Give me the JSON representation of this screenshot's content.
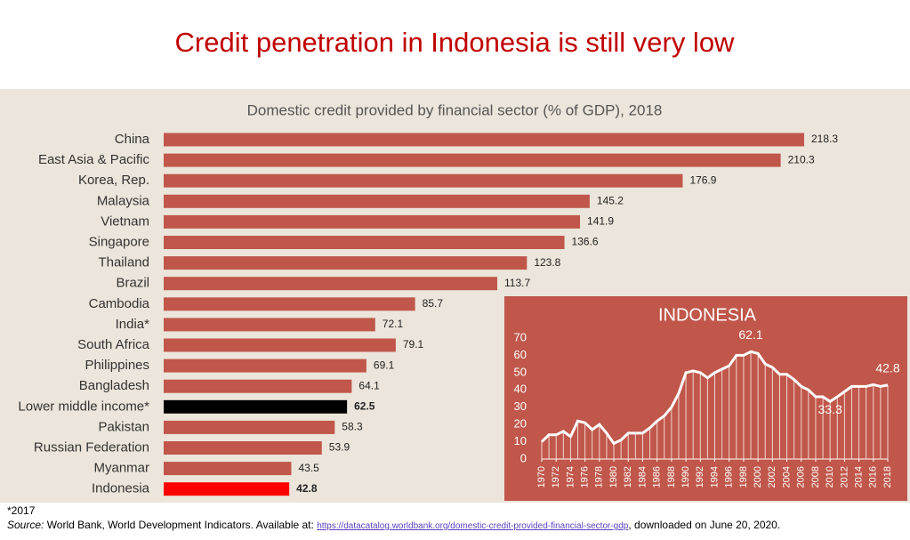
{
  "header": {
    "title": "Credit penetration in Indonesia is still very low"
  },
  "chart_data": [
    {
      "type": "hbar",
      "title": "Domestic credit provided by financial sector (% of GDP), 2018",
      "categories": [
        "China",
        "East Asia & Pacific",
        "Korea, Rep.",
        "Malaysia",
        "Vietnam",
        "Singapore",
        "Thailand",
        "Brazil",
        "Cambodia",
        "India*",
        "South Africa",
        "Philippines",
        "Bangladesh",
        "Lower middle income*",
        "Pakistan",
        "Russian Federation",
        "Myanmar",
        "Indonesia"
      ],
      "values": [
        218.3,
        210.3,
        176.9,
        145.2,
        141.9,
        136.6,
        123.8,
        113.7,
        85.7,
        72.1,
        79.1,
        69.1,
        64.1,
        62.5,
        58.3,
        53.9,
        43.5,
        42.8
      ],
      "color": "#c0574a",
      "colors": [
        "#c0574a",
        "#c0574a",
        "#c0574a",
        "#c0574a",
        "#c0574a",
        "#c0574a",
        "#c0574a",
        "#c0574a",
        "#c0574a",
        "#c0574a",
        "#c0574a",
        "#c0574a",
        "#c0574a",
        "#000000",
        "#c0574a",
        "#c0574a",
        "#c0574a",
        "#ff0000"
      ]
    },
    {
      "type": "line",
      "title": "INDONESIA",
      "color": "#ffffff",
      "x": [
        1970,
        1971,
        1972,
        1973,
        1974,
        1975,
        1976,
        1977,
        1978,
        1979,
        1980,
        1981,
        1982,
        1983,
        1984,
        1985,
        1986,
        1987,
        1988,
        1989,
        1990,
        1991,
        1992,
        1993,
        1994,
        1995,
        1996,
        1997,
        1998,
        1999,
        2000,
        2001,
        2002,
        2003,
        2004,
        2005,
        2006,
        2007,
        2008,
        2009,
        2010,
        2011,
        2012,
        2013,
        2014,
        2015,
        2016,
        2017,
        2018
      ],
      "values": [
        10,
        14,
        14,
        16,
        13,
        22,
        21,
        17,
        20,
        15,
        9,
        11,
        15,
        15,
        15,
        18,
        22,
        25,
        30,
        38,
        50,
        51,
        50,
        47,
        50,
        52,
        54,
        60,
        60,
        62.1,
        61,
        55,
        53,
        49,
        49,
        46,
        42,
        40,
        36,
        36,
        33.3,
        36,
        39,
        42,
        42,
        42,
        43,
        42,
        42.8
      ],
      "annotations": [
        {
          "x": 1999,
          "y": 62.1
        },
        {
          "x": 2010,
          "y": 33.3
        },
        {
          "x": 2018,
          "y": 42.8
        }
      ],
      "xlim": [
        1970,
        2018
      ],
      "xticks": [
        1970,
        1972,
        1974,
        1976,
        1978,
        1980,
        1982,
        1984,
        1986,
        1988,
        1990,
        1992,
        1994,
        1996,
        1998,
        2000,
        2002,
        2004,
        2006,
        2008,
        2010,
        2012,
        2014,
        2016,
        2018
      ],
      "ylim": [
        0,
        70
      ],
      "yticks": [
        0,
        10,
        20,
        30,
        40,
        50,
        60,
        70
      ]
    }
  ],
  "footnote": {
    "note": "*2017",
    "source_label": "Source:",
    "source_text": " World Bank, World Development Indicators. Available at: ",
    "url": "https://datacatalog.worldbank.org/domestic-credit-provided-financial-sector-gdp",
    "tail": ", downloaded on June 20, 2020."
  }
}
